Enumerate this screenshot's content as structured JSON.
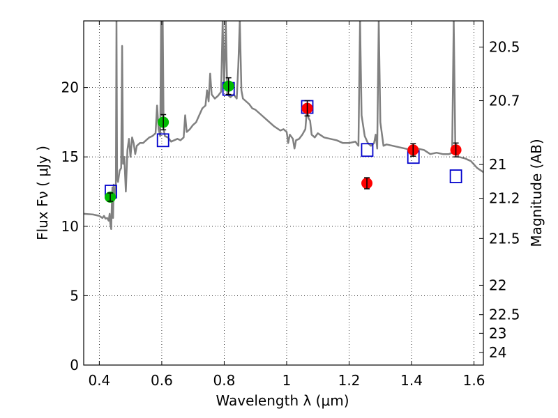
{
  "chart_data": {
    "type": "scatter",
    "xlabel": "Wavelength  λ (μm)",
    "ylabel": "Flux  Fν  ( μJy )",
    "right_ylabel": "Magnitude (AB)",
    "xlim": [
      0.35,
      1.63
    ],
    "ylim": [
      0,
      24.8
    ],
    "grid": true,
    "x_ticks": [
      0.4,
      0.6,
      0.8,
      1.0,
      1.2,
      1.4,
      1.6
    ],
    "x_tick_labels": [
      "0.4",
      "0.6",
      "0.8",
      "1",
      "1.2",
      "1.4",
      "1.6"
    ],
    "y_ticks": [
      0,
      5,
      10,
      15,
      20
    ],
    "y_tick_labels": [
      "0",
      "5",
      "10",
      "15",
      "20"
    ],
    "right_ticks": [
      {
        "label": "20.5",
        "flux": 22.91
      },
      {
        "label": "20.7",
        "flux": 19.05
      },
      {
        "label": "21",
        "flux": 14.45
      },
      {
        "label": "21.2",
        "flux": 12.02
      },
      {
        "label": "21.5",
        "flux": 9.12
      },
      {
        "label": "22",
        "flux": 5.75
      },
      {
        "label": "22.5",
        "flux": 3.63
      },
      {
        "label": "23",
        "flux": 2.29
      },
      {
        "label": "24",
        "flux": 0.91
      }
    ],
    "series": [
      {
        "kind": "model_spectrum",
        "color": "#808080",
        "points": [
          [
            0.35,
            10.9
          ],
          [
            0.38,
            10.85
          ],
          [
            0.4,
            10.75
          ],
          [
            0.41,
            10.6
          ],
          [
            0.415,
            10.75
          ],
          [
            0.42,
            10.55
          ],
          [
            0.425,
            10.6
          ],
          [
            0.43,
            10.4
          ],
          [
            0.433,
            10.9
          ],
          [
            0.435,
            10.2
          ],
          [
            0.438,
            9.8
          ],
          [
            0.44,
            11.5
          ],
          [
            0.442,
            12.8
          ],
          [
            0.444,
            10.6
          ],
          [
            0.446,
            13.0
          ],
          [
            0.45,
            12.0
          ],
          [
            0.453,
            12.3
          ],
          [
            0.455,
            24.8
          ],
          [
            0.457,
            13.5
          ],
          [
            0.46,
            13.2
          ],
          [
            0.465,
            14.0
          ],
          [
            0.47,
            14.2
          ],
          [
            0.473,
            23.0
          ],
          [
            0.476,
            14.5
          ],
          [
            0.48,
            15.0
          ],
          [
            0.485,
            12.5
          ],
          [
            0.49,
            15.5
          ],
          [
            0.495,
            16.3
          ],
          [
            0.5,
            15.0
          ],
          [
            0.505,
            16.4
          ],
          [
            0.51,
            16.0
          ],
          [
            0.515,
            15.2
          ],
          [
            0.52,
            15.8
          ],
          [
            0.53,
            16.0
          ],
          [
            0.54,
            16.0
          ],
          [
            0.55,
            16.2
          ],
          [
            0.56,
            16.4
          ],
          [
            0.57,
            16.5
          ],
          [
            0.58,
            16.7
          ],
          [
            0.585,
            18.7
          ],
          [
            0.59,
            17.0
          ],
          [
            0.595,
            16.5
          ],
          [
            0.598,
            24.8
          ],
          [
            0.6,
            18.0
          ],
          [
            0.603,
            24.8
          ],
          [
            0.606,
            17.0
          ],
          [
            0.61,
            16.5
          ],
          [
            0.62,
            16.4
          ],
          [
            0.63,
            16.1
          ],
          [
            0.64,
            16.2
          ],
          [
            0.65,
            16.3
          ],
          [
            0.66,
            16.2
          ],
          [
            0.67,
            16.4
          ],
          [
            0.675,
            18.0
          ],
          [
            0.68,
            16.8
          ],
          [
            0.69,
            17.0
          ],
          [
            0.7,
            17.3
          ],
          [
            0.71,
            17.5
          ],
          [
            0.72,
            18.0
          ],
          [
            0.73,
            18.5
          ],
          [
            0.74,
            18.7
          ],
          [
            0.745,
            19.8
          ],
          [
            0.75,
            19.0
          ],
          [
            0.755,
            21.0
          ],
          [
            0.76,
            19.5
          ],
          [
            0.77,
            19.2
          ],
          [
            0.78,
            19.4
          ],
          [
            0.79,
            19.7
          ],
          [
            0.795,
            24.8
          ],
          [
            0.8,
            20.0
          ],
          [
            0.805,
            24.8
          ],
          [
            0.81,
            19.5
          ],
          [
            0.82,
            19.3
          ],
          [
            0.83,
            19.5
          ],
          [
            0.84,
            19.2
          ],
          [
            0.845,
            21.5
          ],
          [
            0.85,
            24.8
          ],
          [
            0.855,
            19.8
          ],
          [
            0.86,
            19.2
          ],
          [
            0.87,
            19.0
          ],
          [
            0.88,
            18.8
          ],
          [
            0.89,
            18.5
          ],
          [
            0.9,
            18.4
          ],
          [
            0.92,
            18.0
          ],
          [
            0.94,
            17.6
          ],
          [
            0.96,
            17.2
          ],
          [
            0.98,
            16.9
          ],
          [
            0.99,
            17.0
          ],
          [
            1.0,
            16.8
          ],
          [
            1.005,
            16.0
          ],
          [
            1.01,
            16.6
          ],
          [
            1.02,
            16.3
          ],
          [
            1.025,
            15.6
          ],
          [
            1.03,
            16.2
          ],
          [
            1.04,
            16.3
          ],
          [
            1.05,
            16.6
          ],
          [
            1.06,
            17.0
          ],
          [
            1.065,
            18.5
          ],
          [
            1.07,
            17.8
          ],
          [
            1.075,
            17.6
          ],
          [
            1.08,
            16.6
          ],
          [
            1.09,
            16.4
          ],
          [
            1.1,
            16.7
          ],
          [
            1.12,
            16.4
          ],
          [
            1.14,
            16.3
          ],
          [
            1.16,
            16.2
          ],
          [
            1.18,
            16.0
          ],
          [
            1.2,
            16.0
          ],
          [
            1.22,
            16.1
          ],
          [
            1.23,
            15.8
          ],
          [
            1.235,
            24.8
          ],
          [
            1.24,
            18.0
          ],
          [
            1.25,
            16.5
          ],
          [
            1.26,
            16.0
          ],
          [
            1.27,
            15.8
          ],
          [
            1.28,
            16.0
          ],
          [
            1.285,
            16.6
          ],
          [
            1.29,
            15.6
          ],
          [
            1.295,
            24.8
          ],
          [
            1.3,
            17.5
          ],
          [
            1.31,
            15.8
          ],
          [
            1.32,
            15.9
          ],
          [
            1.34,
            15.8
          ],
          [
            1.36,
            15.7
          ],
          [
            1.38,
            15.6
          ],
          [
            1.4,
            15.5
          ],
          [
            1.42,
            15.6
          ],
          [
            1.44,
            15.5
          ],
          [
            1.46,
            15.2
          ],
          [
            1.48,
            15.3
          ],
          [
            1.5,
            15.2
          ],
          [
            1.52,
            15.2
          ],
          [
            1.53,
            15.3
          ],
          [
            1.535,
            24.8
          ],
          [
            1.54,
            16.0
          ],
          [
            1.55,
            15.0
          ],
          [
            1.57,
            14.9
          ],
          [
            1.59,
            14.7
          ],
          [
            1.61,
            14.2
          ],
          [
            1.63,
            13.9
          ]
        ]
      },
      {
        "kind": "points_with_errors",
        "color": "#00bb00",
        "points": [
          {
            "x": 0.435,
            "y": 12.1,
            "err": 0.3
          },
          {
            "x": 0.605,
            "y": 17.5,
            "err": 0.55
          },
          {
            "x": 0.814,
            "y": 20.1,
            "err": 0.6
          }
        ]
      },
      {
        "kind": "points_with_errors",
        "color": "#ff0000",
        "points": [
          {
            "x": 1.066,
            "y": 18.5,
            "err": 0.55
          },
          {
            "x": 1.257,
            "y": 13.1,
            "err": 0.4
          },
          {
            "x": 1.405,
            "y": 15.5,
            "err": 0.45
          },
          {
            "x": 1.542,
            "y": 15.5,
            "err": 0.5
          }
        ]
      },
      {
        "kind": "model_photometry",
        "color": "#0000cc",
        "points": [
          {
            "x": 0.437,
            "y": 12.5
          },
          {
            "x": 0.604,
            "y": 16.2
          },
          {
            "x": 0.814,
            "y": 19.9
          },
          {
            "x": 1.066,
            "y": 18.6
          },
          {
            "x": 1.258,
            "y": 15.5
          },
          {
            "x": 1.406,
            "y": 15.0
          },
          {
            "x": 1.542,
            "y": 13.6
          }
        ]
      }
    ]
  }
}
